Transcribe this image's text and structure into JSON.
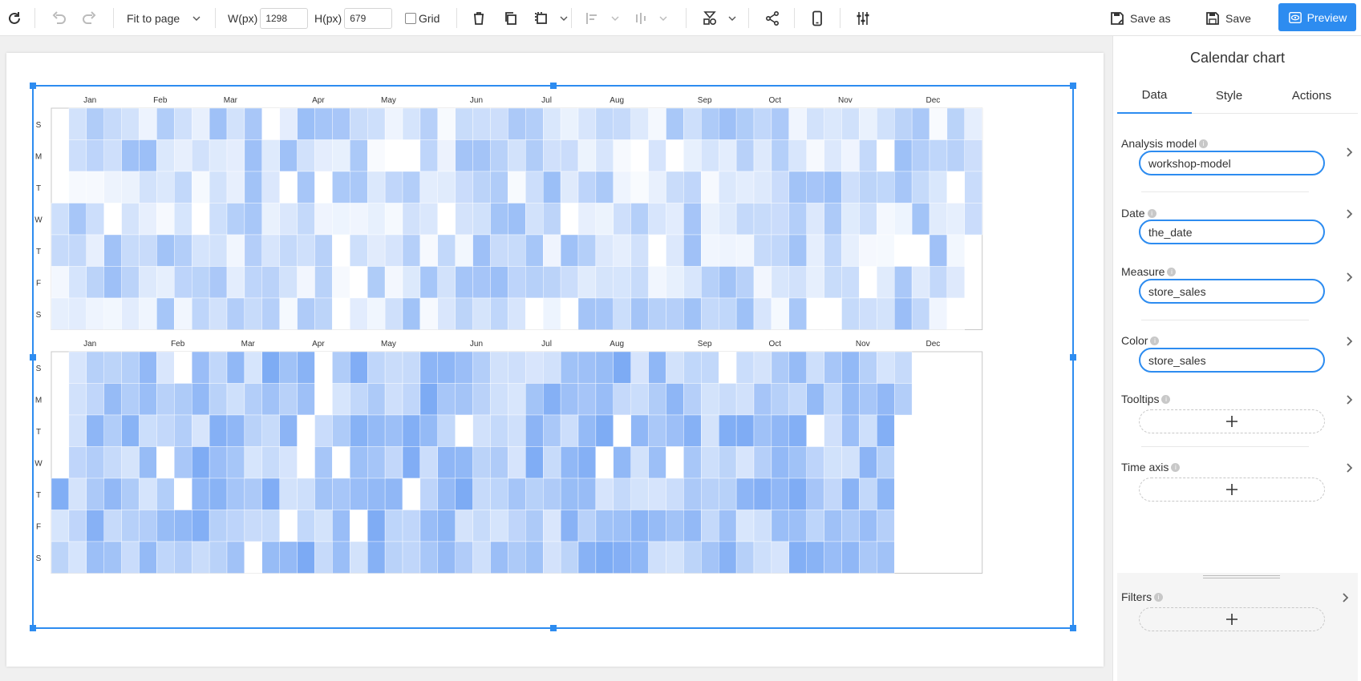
{
  "toolbar": {
    "zoom_label": "Fit to page",
    "width_label": "W(px)",
    "width_value": "1298",
    "height_label": "H(px)",
    "height_value": "679",
    "grid_label": "Grid",
    "save_as_label": "Save as",
    "save_label": "Save",
    "preview_label": "Preview"
  },
  "panel": {
    "title": "Calendar chart",
    "tabs": [
      "Data",
      "Style",
      "Actions"
    ],
    "fields": {
      "analysis_model": {
        "label": "Analysis model",
        "value": "workshop-model"
      },
      "date": {
        "label": "Date",
        "value": "the_date"
      },
      "measure": {
        "label": "Measure",
        "value": "store_sales"
      },
      "color": {
        "label": "Color",
        "value": "store_sales"
      },
      "tooltips": {
        "label": "Tooltips"
      },
      "time_axis": {
        "label": "Time axis"
      },
      "filters": {
        "label": "Filters"
      }
    }
  },
  "colors": {
    "accent": "#2d8cf0",
    "cell_low": "#ffffff",
    "cell_high": "#4a8af0"
  },
  "chart_data": {
    "type": "heatmap",
    "day_labels": [
      "S",
      "M",
      "T",
      "W",
      "T",
      "F",
      "S"
    ],
    "month_labels": [
      "Jan",
      "Feb",
      "Mar",
      "Apr",
      "May",
      "Jun",
      "Jul",
      "Aug",
      "Sep",
      "Oct",
      "Nov",
      "Dec"
    ],
    "years": [
      {
        "start_weekday": 3,
        "days": 365,
        "intensity": 0.28
      },
      {
        "start_weekday": 4,
        "days": 334,
        "intensity": 0.45
      }
    ],
    "value_scale": [
      0,
      1
    ]
  }
}
